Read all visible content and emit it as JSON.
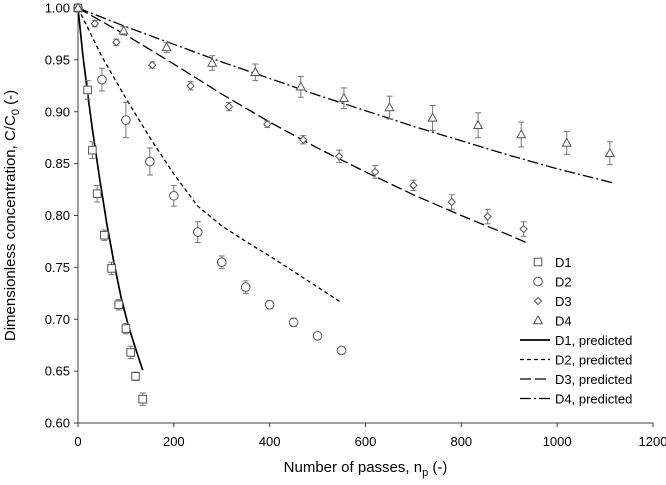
{
  "chart_data": {
    "type": "scatter",
    "xlabel": "Number of passes, n",
    "xlabel_sub": "p",
    "xlabel_suffix": " (-)",
    "ylabel": "Dimensionless concentration, C/C",
    "ylabel_sub": "0",
    "ylabel_suffix": " (-)",
    "xlim": [
      0,
      1200
    ],
    "ylim": [
      0.6,
      1.0
    ],
    "xticks": [
      0,
      200,
      400,
      600,
      800,
      1000,
      1200
    ],
    "yticks": [
      0.6,
      0.65,
      0.7,
      0.75,
      0.8,
      0.85,
      0.9,
      0.95,
      1.0
    ],
    "grid": false,
    "legend_position": "bottom-right",
    "measured": [
      {
        "name": "D1",
        "marker": "square",
        "points": [
          {
            "x": 0,
            "y": 1.0,
            "err": 0.0
          },
          {
            "x": 20,
            "y": 0.921,
            "err": 0.009
          },
          {
            "x": 30,
            "y": 0.863,
            "err": 0.008
          },
          {
            "x": 40,
            "y": 0.821,
            "err": 0.008
          },
          {
            "x": 55,
            "y": 0.781,
            "err": 0.005
          },
          {
            "x": 70,
            "y": 0.749,
            "err": 0.006
          },
          {
            "x": 85,
            "y": 0.714,
            "err": 0.005
          },
          {
            "x": 100,
            "y": 0.691,
            "err": 0.005
          },
          {
            "x": 110,
            "y": 0.668,
            "err": 0.006
          },
          {
            "x": 120,
            "y": 0.645,
            "err": 0.004
          },
          {
            "x": 135,
            "y": 0.623,
            "err": 0.006
          }
        ]
      },
      {
        "name": "D2",
        "marker": "circle",
        "points": [
          {
            "x": 0,
            "y": 1.0,
            "err": 0.0
          },
          {
            "x": 50,
            "y": 0.931,
            "err": 0.011
          },
          {
            "x": 100,
            "y": 0.892,
            "err": 0.017
          },
          {
            "x": 150,
            "y": 0.852,
            "err": 0.013
          },
          {
            "x": 200,
            "y": 0.819,
            "err": 0.01
          },
          {
            "x": 250,
            "y": 0.784,
            "err": 0.01
          },
          {
            "x": 300,
            "y": 0.755,
            "err": 0.006
          },
          {
            "x": 350,
            "y": 0.731,
            "err": 0.006
          },
          {
            "x": 400,
            "y": 0.714,
            "err": 0.004
          },
          {
            "x": 450,
            "y": 0.697,
            "err": 0.004
          },
          {
            "x": 500,
            "y": 0.684,
            "err": 0.003
          },
          {
            "x": 550,
            "y": 0.67,
            "err": 0.003
          }
        ]
      },
      {
        "name": "D3",
        "marker": "diamond",
        "points": [
          {
            "x": 0,
            "y": 1.0,
            "err": 0.0
          },
          {
            "x": 35,
            "y": 0.985,
            "err": 0.003
          },
          {
            "x": 80,
            "y": 0.967,
            "err": 0.003
          },
          {
            "x": 155,
            "y": 0.945,
            "err": 0.003
          },
          {
            "x": 235,
            "y": 0.925,
            "err": 0.004
          },
          {
            "x": 315,
            "y": 0.905,
            "err": 0.004
          },
          {
            "x": 395,
            "y": 0.888,
            "err": 0.003
          },
          {
            "x": 470,
            "y": 0.873,
            "err": 0.004
          },
          {
            "x": 545,
            "y": 0.857,
            "err": 0.006
          },
          {
            "x": 620,
            "y": 0.842,
            "err": 0.006
          },
          {
            "x": 700,
            "y": 0.829,
            "err": 0.005
          },
          {
            "x": 780,
            "y": 0.813,
            "err": 0.007
          },
          {
            "x": 855,
            "y": 0.799,
            "err": 0.007
          },
          {
            "x": 930,
            "y": 0.787,
            "err": 0.007
          }
        ]
      },
      {
        "name": "D4",
        "marker": "triangle",
        "points": [
          {
            "x": 0,
            "y": 1.0,
            "err": 0.0
          },
          {
            "x": 95,
            "y": 0.978,
            "err": 0.004
          },
          {
            "x": 185,
            "y": 0.962,
            "err": 0.005
          },
          {
            "x": 280,
            "y": 0.947,
            "err": 0.007
          },
          {
            "x": 370,
            "y": 0.938,
            "err": 0.008
          },
          {
            "x": 465,
            "y": 0.924,
            "err": 0.01
          },
          {
            "x": 555,
            "y": 0.913,
            "err": 0.01
          },
          {
            "x": 650,
            "y": 0.904,
            "err": 0.011
          },
          {
            "x": 740,
            "y": 0.894,
            "err": 0.012
          },
          {
            "x": 835,
            "y": 0.887,
            "err": 0.012
          },
          {
            "x": 925,
            "y": 0.878,
            "err": 0.012
          },
          {
            "x": 1020,
            "y": 0.87,
            "err": 0.011
          },
          {
            "x": 1110,
            "y": 0.86,
            "err": 0.011
          }
        ]
      }
    ],
    "predicted": [
      {
        "name": "D1, predicted",
        "dash": "solid",
        "points": [
          [
            0,
            1.0
          ],
          [
            10,
            0.955
          ],
          [
            20,
            0.918
          ],
          [
            30,
            0.883
          ],
          [
            45,
            0.836
          ],
          [
            60,
            0.792
          ],
          [
            75,
            0.755
          ],
          [
            90,
            0.721
          ],
          [
            105,
            0.694
          ],
          [
            120,
            0.672
          ],
          [
            135,
            0.651
          ]
        ]
      },
      {
        "name": "D2, predicted",
        "dash": "short",
        "points": [
          [
            0,
            1.0
          ],
          [
            50,
            0.953
          ],
          [
            100,
            0.913
          ],
          [
            150,
            0.875
          ],
          [
            200,
            0.84
          ],
          [
            250,
            0.809
          ],
          [
            300,
            0.79
          ],
          [
            350,
            0.775
          ],
          [
            400,
            0.761
          ],
          [
            450,
            0.746
          ],
          [
            500,
            0.731
          ],
          [
            550,
            0.716
          ]
        ]
      },
      {
        "name": "D3, predicted",
        "dash": "long",
        "points": [
          [
            0,
            1.0
          ],
          [
            100,
            0.974
          ],
          [
            200,
            0.946
          ],
          [
            300,
            0.917
          ],
          [
            400,
            0.89
          ],
          [
            500,
            0.865
          ],
          [
            600,
            0.842
          ],
          [
            700,
            0.82
          ],
          [
            800,
            0.8
          ],
          [
            900,
            0.781
          ],
          [
            940,
            0.773
          ]
        ]
      },
      {
        "name": "D4, predicted",
        "dash": "dashdot",
        "points": [
          [
            0,
            1.0
          ],
          [
            100,
            0.982
          ],
          [
            200,
            0.965
          ],
          [
            300,
            0.948
          ],
          [
            400,
            0.932
          ],
          [
            500,
            0.916
          ],
          [
            600,
            0.901
          ],
          [
            700,
            0.886
          ],
          [
            800,
            0.872
          ],
          [
            900,
            0.858
          ],
          [
            1000,
            0.845
          ],
          [
            1120,
            0.831
          ]
        ]
      }
    ]
  }
}
